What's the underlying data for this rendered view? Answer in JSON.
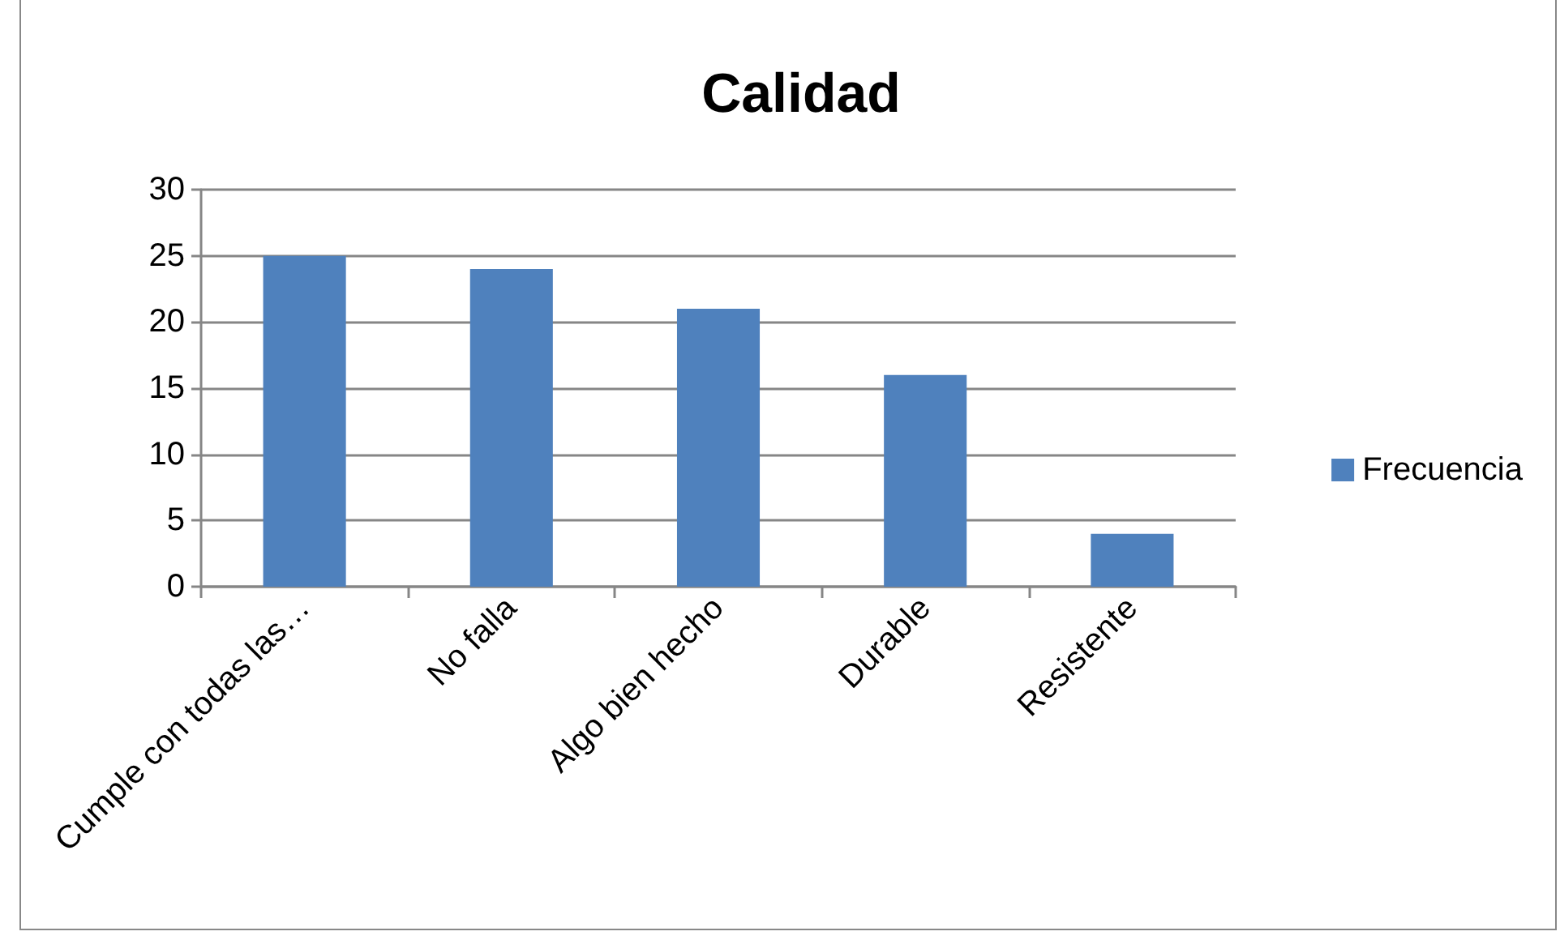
{
  "chart_data": {
    "type": "bar",
    "title": "Calidad",
    "categories": [
      "Cumple con todas las…",
      "No falla",
      "Algo bien hecho",
      "Durable",
      "Resistente"
    ],
    "series": [
      {
        "name": "Frecuencia",
        "color": "#4f81bd",
        "values": [
          25,
          24,
          21,
          16,
          4
        ]
      }
    ],
    "ylim": [
      0,
      30
    ],
    "yticks": [
      0,
      5,
      10,
      15,
      20,
      25,
      30
    ],
    "grid": "y",
    "legend": "right"
  }
}
